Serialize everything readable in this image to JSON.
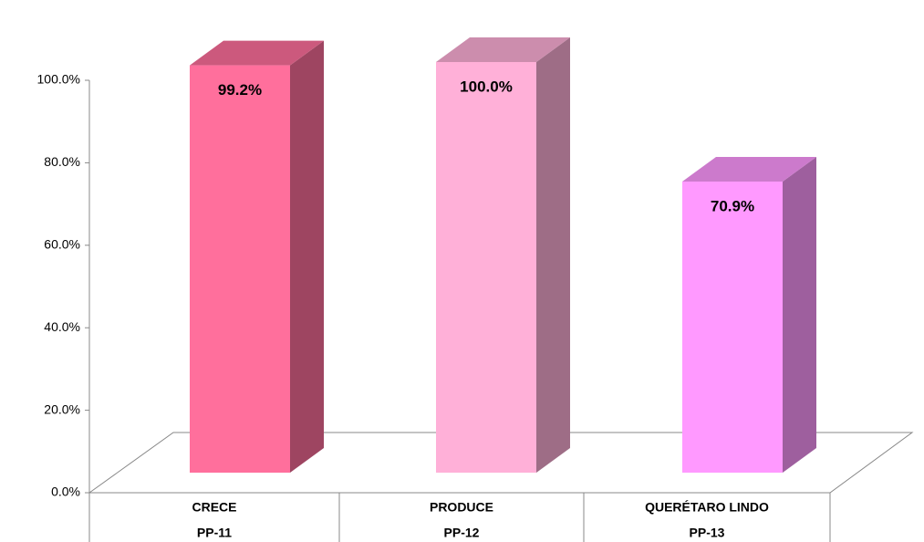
{
  "chart_data": {
    "type": "bar3d",
    "categories": [
      "CRECE",
      "PRODUCE",
      "QUERÉTARO LINDO"
    ],
    "subcategories": [
      "PP-11",
      "PP-12",
      "PP-13"
    ],
    "values": [
      99.2,
      100.0,
      70.9
    ],
    "value_labels": [
      "99.2%",
      "100.0%",
      "70.9%"
    ],
    "colors": [
      "#ff6f9c",
      "#ffb0d8",
      "#ff99ff"
    ],
    "ylim": [
      0,
      100
    ],
    "yticks": [
      {
        "value": 0,
        "label": "0.0%"
      },
      {
        "value": 20,
        "label": "20.0%"
      },
      {
        "value": 40,
        "label": "40.0%"
      },
      {
        "value": 60,
        "label": "60.0%"
      },
      {
        "value": 80,
        "label": "80.0%"
      },
      {
        "value": 100,
        "label": "100.0%"
      }
    ]
  }
}
